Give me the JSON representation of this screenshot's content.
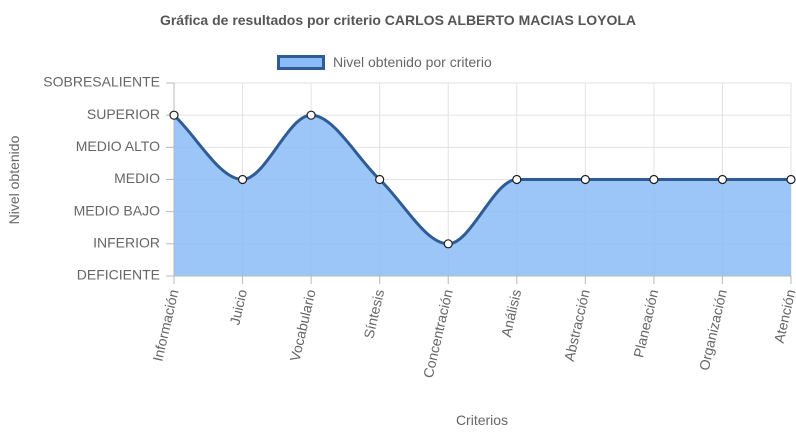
{
  "chart_data": {
    "type": "line",
    "title": "Gráfica de resultados por criterio CARLOS ALBERTO MACIAS LOYOLA",
    "xlabel": "Criterios",
    "ylabel": "Nivel obtenido",
    "levels": [
      "DEFICIENTE",
      "INFERIOR",
      "MEDIO BAJO",
      "MEDIO",
      "MEDIO ALTO",
      "SUPERIOR",
      "SOBRESALIENTE"
    ],
    "categories": [
      "Información",
      "Juicio",
      "Vocabulario",
      "Síntesis",
      "Concentración",
      "Análisis",
      "Abstracción",
      "Planeación",
      "Organización",
      "Atención"
    ],
    "series": [
      {
        "name": "Nivel obtenido por criterio",
        "values": [
          "SUPERIOR",
          "MEDIO",
          "SUPERIOR",
          "MEDIO",
          "INFERIOR",
          "MEDIO",
          "MEDIO",
          "MEDIO",
          "MEDIO",
          "MEDIO"
        ],
        "line_color": "#2f5c94",
        "fill_color": "#8bbcf7"
      }
    ],
    "legend_position": "top",
    "grid": true,
    "area_fill": true
  }
}
